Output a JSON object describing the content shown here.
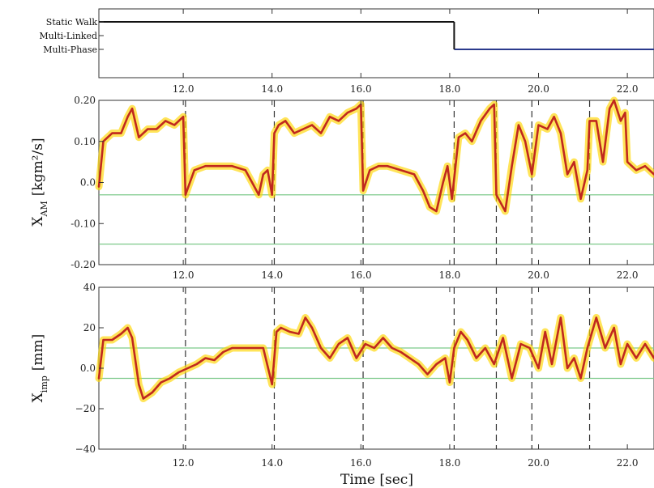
{
  "chart_data": [
    {
      "type": "step",
      "panel": "gait-state",
      "states": [
        "Static Walk",
        "Multi-Linked",
        "Multi-Phase"
      ],
      "series": [
        {
          "name": "",
          "color": "#111111",
          "state": "Static Walk",
          "x_range": [
            10.1,
            18.1
          ]
        },
        {
          "name": "",
          "color": "#2a3a8c",
          "state": "Multi-Phase",
          "x_range": [
            18.1,
            22.6
          ]
        }
      ],
      "xlim": [
        10.1,
        22.6
      ],
      "xticks": [
        12.0,
        14.0,
        16.0,
        18.0,
        20.0,
        22.0
      ],
      "xtick_labels": [
        "12.0",
        "14.0",
        "16.0",
        "18.0",
        "20.0",
        "22.0"
      ]
    },
    {
      "type": "line",
      "panel": "angular-momentum",
      "ylabel_main": "X",
      "ylabel_sub": "AM",
      "ylabel_unit": "[kgm²/s]",
      "ylim": [
        -0.2,
        0.2
      ],
      "yticks": [
        -0.2,
        -0.1,
        0.0,
        0.1,
        0.2
      ],
      "ytick_labels": [
        "-0.20",
        "-0.10",
        "0.0",
        "0.10",
        "0.20"
      ],
      "xticks": [
        12.0,
        14.0,
        16.0,
        18.0,
        20.0,
        22.0
      ],
      "xtick_labels": [
        "12.0",
        "14.0",
        "16.0",
        "18.0",
        "20.0",
        "22.0"
      ],
      "thresholds": [
        -0.03,
        -0.15
      ],
      "threshold_color": "#7cc98a",
      "line_color": "#c0281e",
      "band_color": "#ffd500",
      "x": [
        10.1,
        10.2,
        10.4,
        10.6,
        10.75,
        10.85,
        11.0,
        11.2,
        11.4,
        11.6,
        11.8,
        12.0,
        12.05,
        12.15,
        12.25,
        12.5,
        12.8,
        13.1,
        13.4,
        13.55,
        13.7,
        13.8,
        13.9,
        14.0,
        14.05,
        14.15,
        14.3,
        14.5,
        14.7,
        14.9,
        15.1,
        15.3,
        15.5,
        15.7,
        15.9,
        16.0,
        16.05,
        16.2,
        16.4,
        16.6,
        16.9,
        17.2,
        17.4,
        17.55,
        17.7,
        17.85,
        17.95,
        18.05,
        18.2,
        18.35,
        18.5,
        18.7,
        18.9,
        19.0,
        19.05,
        19.1,
        19.25,
        19.4,
        19.55,
        19.7,
        19.85,
        20.0,
        20.2,
        20.35,
        20.5,
        20.65,
        20.8,
        20.95,
        21.1,
        21.15,
        21.3,
        21.45,
        21.6,
        21.7,
        21.85,
        21.95,
        22.0,
        22.2,
        22.4,
        22.6
      ],
      "y": [
        -0.01,
        0.1,
        0.12,
        0.12,
        0.16,
        0.18,
        0.11,
        0.13,
        0.13,
        0.15,
        0.14,
        0.16,
        -0.03,
        0.0,
        0.03,
        0.04,
        0.04,
        0.04,
        0.03,
        0.0,
        -0.03,
        0.02,
        0.03,
        -0.03,
        0.12,
        0.14,
        0.15,
        0.12,
        0.13,
        0.14,
        0.12,
        0.16,
        0.15,
        0.17,
        0.18,
        0.19,
        -0.02,
        0.03,
        0.04,
        0.04,
        0.03,
        0.02,
        -0.02,
        -0.06,
        -0.07,
        0.0,
        0.04,
        -0.04,
        0.11,
        0.12,
        0.1,
        0.15,
        0.18,
        0.19,
        -0.03,
        -0.04,
        -0.07,
        0.04,
        0.14,
        0.1,
        0.02,
        0.14,
        0.13,
        0.16,
        0.12,
        0.02,
        0.05,
        -0.04,
        0.03,
        0.15,
        0.15,
        0.05,
        0.18,
        0.2,
        0.15,
        0.17,
        0.05,
        0.03,
        0.04,
        0.02
      ]
    },
    {
      "type": "line",
      "panel": "impulse",
      "ylabel_main": "X",
      "ylabel_sub": "imp",
      "ylabel_unit": "[mm]",
      "ylim": [
        -40,
        40
      ],
      "yticks": [
        -40,
        -20,
        0,
        20,
        40
      ],
      "ytick_labels": [
        "−40",
        "−20",
        "0.0",
        "20",
        "40"
      ],
      "xlabel": "Time [sec]",
      "xticks": [
        12.0,
        14.0,
        16.0,
        18.0,
        20.0,
        22.0
      ],
      "xtick_labels": [
        "12.0",
        "14.0",
        "16.0",
        "18.0",
        "20.0",
        "22.0"
      ],
      "thresholds": [
        10,
        -5
      ],
      "threshold_color": "#7cc98a",
      "line_color": "#c0281e",
      "band_color": "#ffd500",
      "x": [
        10.1,
        10.2,
        10.4,
        10.6,
        10.75,
        10.85,
        11.0,
        11.1,
        11.3,
        11.5,
        11.7,
        11.9,
        12.1,
        12.3,
        12.5,
        12.7,
        12.9,
        13.1,
        13.3,
        13.5,
        13.8,
        14.0,
        14.1,
        14.2,
        14.4,
        14.6,
        14.75,
        14.9,
        15.1,
        15.3,
        15.5,
        15.7,
        15.9,
        16.1,
        16.3,
        16.5,
        16.7,
        16.9,
        17.1,
        17.3,
        17.5,
        17.7,
        17.9,
        18.0,
        18.1,
        18.25,
        18.4,
        18.6,
        18.8,
        19.0,
        19.2,
        19.4,
        19.6,
        19.8,
        20.0,
        20.15,
        20.3,
        20.5,
        20.65,
        20.8,
        20.95,
        21.1,
        21.3,
        21.5,
        21.7,
        21.85,
        22.0,
        22.2,
        22.4,
        22.6
      ],
      "y": [
        -5,
        14,
        14,
        17,
        20,
        15,
        -8,
        -15,
        -12,
        -7,
        -5,
        -2,
        0,
        2,
        5,
        4,
        8,
        10,
        10,
        10,
        10,
        -8,
        18,
        20,
        18,
        17,
        25,
        20,
        10,
        5,
        12,
        15,
        5,
        12,
        10,
        15,
        10,
        8,
        5,
        2,
        -3,
        2,
        5,
        -7,
        10,
        18,
        14,
        5,
        10,
        2,
        15,
        -5,
        12,
        10,
        0,
        18,
        2,
        25,
        0,
        5,
        -5,
        10,
        25,
        10,
        20,
        2,
        12,
        5,
        12,
        5
      ]
    }
  ]
}
